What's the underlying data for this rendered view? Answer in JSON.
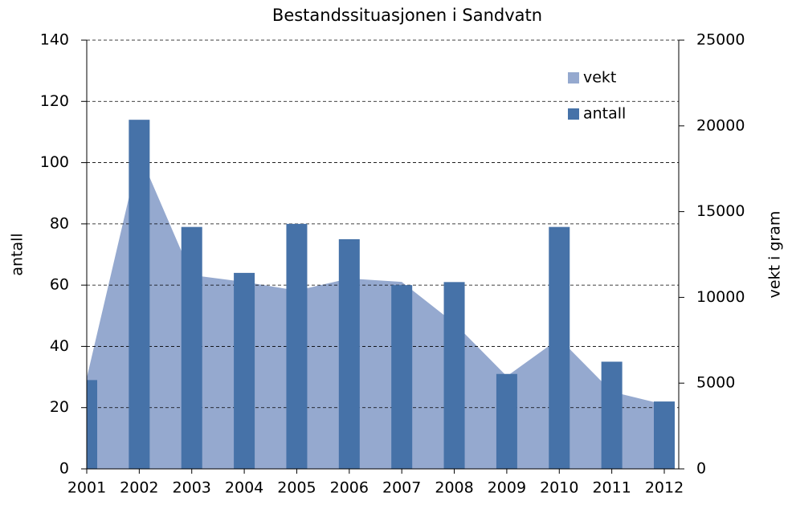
{
  "chart_data": {
    "type": "bar-area",
    "title": "Bestandssituasjonen i Sandvatn",
    "y_label": "antall",
    "y2_label": "vekt i gram",
    "categories": [
      "2001",
      "2002",
      "2003",
      "2004",
      "2005",
      "2006",
      "2007",
      "2008",
      "2009",
      "2010",
      "2011",
      "2012"
    ],
    "series": [
      {
        "name": "vekt",
        "color": "#95a9cf",
        "axis": "y2",
        "kind": "area",
        "values": [
          5300,
          18400,
          11300,
          10900,
          10400,
          11100,
          10900,
          8500,
          5400,
          7600,
          4500,
          3750
        ]
      },
      {
        "name": "antall",
        "color": "#4672a8",
        "kind": "bar",
        "values": [
          29,
          114,
          79,
          64,
          80,
          75,
          60,
          61,
          31,
          79,
          35,
          22
        ]
      }
    ],
    "ylim": [
      0,
      140
    ],
    "yticks": [
      0,
      20,
      40,
      60,
      80,
      100,
      120,
      140
    ],
    "y2lim": [
      0,
      25000
    ],
    "y2ticks": [
      0,
      5000,
      10000,
      15000,
      20000,
      25000
    ],
    "grid": true,
    "legend": "top-right"
  }
}
